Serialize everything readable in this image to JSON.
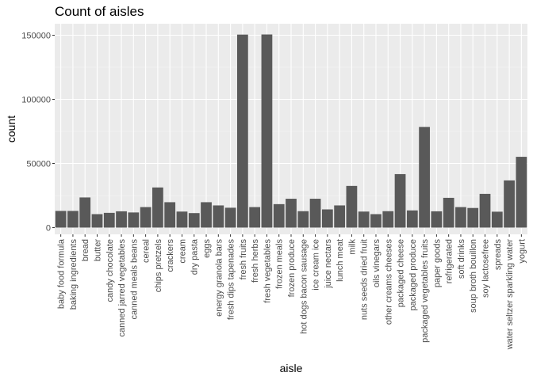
{
  "chart_data": {
    "type": "bar",
    "title": "Count of aisles",
    "xlabel": "aisle",
    "ylabel": "count",
    "ylim": [
      0,
      160000
    ],
    "yticks": [
      0,
      50000,
      100000,
      150000
    ],
    "ytick_labels": [
      "0",
      "50000",
      "100000",
      "150000"
    ],
    "grid": true,
    "legend": "none",
    "bar_color": "#595959",
    "panel_color": "#ebebeb",
    "categories": [
      "baby food formula",
      "baking ingredients",
      "bread",
      "butter",
      "candy chocolate",
      "canned jarred vegetables",
      "canned meals beans",
      "cereal",
      "chips pretzels",
      "crackers",
      "cream",
      "dry pasta",
      "eggs",
      "energy granola bars",
      "fresh dips tapenades",
      "fresh fruits",
      "fresh herbs",
      "fresh vegetables",
      "frozen meals",
      "frozen produce",
      "hot dogs bacon sausage",
      "ice cream ice",
      "juice nectars",
      "lunch meat",
      "milk",
      "nuts seeds dried fruit",
      "oils vinegars",
      "other creams cheeses",
      "packaged cheese",
      "packaged produce",
      "packaged vegetables fruits",
      "paper goods",
      "refrigerated",
      "soft drinks",
      "soup broth bouillon",
      "soy lactosefree",
      "spreads",
      "water seltzer sparkling water",
      "yogurt"
    ],
    "values": [
      13000,
      13000,
      23500,
      10500,
      11500,
      12700,
      11800,
      16000,
      31300,
      19800,
      12500,
      11300,
      19800,
      17300,
      15500,
      150500,
      16000,
      150600,
      18300,
      22500,
      12800,
      22500,
      14200,
      17300,
      32500,
      12500,
      10500,
      12800,
      41700,
      13400,
      78500,
      12700,
      23200,
      16000,
      15300,
      26300,
      12400,
      36800,
      55200
    ]
  }
}
